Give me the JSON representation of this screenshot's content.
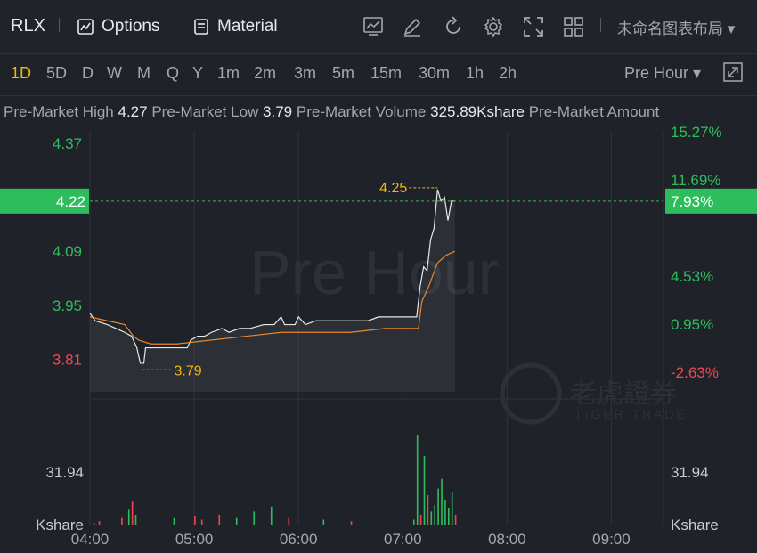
{
  "toolbar": {
    "symbol": "RLX",
    "options_label": "Options",
    "material_label": "Material",
    "layout_label": "未命名图表布局 ▾",
    "icons": [
      "chart-settings-icon",
      "draw-icon",
      "refresh-icon",
      "gear-icon",
      "fullscreen-icon",
      "grid-icon"
    ]
  },
  "periods": [
    "1D",
    "5D",
    "D",
    "W",
    "M",
    "Q",
    "Y",
    "1m",
    "2m",
    "3m",
    "5m",
    "15m",
    "30m",
    "1h",
    "2h"
  ],
  "active_period": "1D",
  "session_dropdown": "Pre Hour ▾",
  "stats": {
    "high_label": "Pre-Market High",
    "high_value": "4.27",
    "low_label": "Pre-Market Low",
    "low_value": "3.79",
    "volume_label": "Pre-Market Volume",
    "volume_value": "325.89Kshare",
    "amount_label": "Pre-Market Amount"
  },
  "colors": {
    "up": "#2ebd5c",
    "down": "#f0464f",
    "accent": "#f0b90b",
    "price_line": "#e8e8e8",
    "avg_line": "#e8882c",
    "current_bg": "#2ebd5c"
  },
  "chart_data": {
    "type": "line",
    "watermark": "Pre Hour",
    "brand_cn": "老虎證券",
    "brand_en": "TIGER TRADE",
    "x_ticks": [
      "04:00",
      "05:00",
      "06:00",
      "07:00",
      "08:00",
      "09:00"
    ],
    "y_ticks_left": [
      "4.37",
      "4.22",
      "4.09",
      "3.95",
      "3.81"
    ],
    "y_ticks_right": [
      "15.27%",
      "11.69%",
      "7.93%",
      "4.53%",
      "0.95%",
      "-2.63%"
    ],
    "current_price": "4.22",
    "current_pct": "7.93%",
    "high_marker": "4.25",
    "low_marker": "3.79",
    "volume_tick": "31.94",
    "volume_unit": "Kshare",
    "price": [
      [
        0,
        3.93
      ],
      [
        3,
        3.91
      ],
      [
        10,
        3.9
      ],
      [
        20,
        3.88
      ],
      [
        24,
        3.87
      ],
      [
        27,
        3.84
      ],
      [
        29,
        3.8
      ],
      [
        31,
        3.8
      ],
      [
        32,
        3.84
      ],
      [
        40,
        3.84
      ],
      [
        50,
        3.84
      ],
      [
        56,
        3.84
      ],
      [
        58,
        3.86
      ],
      [
        62,
        3.87
      ],
      [
        66,
        3.87
      ],
      [
        70,
        3.88
      ],
      [
        76,
        3.89
      ],
      [
        80,
        3.88
      ],
      [
        86,
        3.89
      ],
      [
        92,
        3.89
      ],
      [
        100,
        3.9
      ],
      [
        106,
        3.9
      ],
      [
        110,
        3.92
      ],
      [
        112,
        3.9
      ],
      [
        118,
        3.9
      ],
      [
        120,
        3.92
      ],
      [
        124,
        3.9
      ],
      [
        130,
        3.91
      ],
      [
        140,
        3.91
      ],
      [
        150,
        3.91
      ],
      [
        160,
        3.91
      ],
      [
        166,
        3.92
      ],
      [
        176,
        3.92
      ],
      [
        184,
        3.92
      ],
      [
        188,
        3.92
      ],
      [
        190,
        4.0
      ],
      [
        192,
        4.05
      ],
      [
        194,
        4.04
      ],
      [
        196,
        4.12
      ],
      [
        198,
        4.15
      ],
      [
        200,
        4.25
      ],
      [
        202,
        4.22
      ],
      [
        204,
        4.23
      ],
      [
        206,
        4.17
      ],
      [
        208,
        4.22
      ],
      [
        210,
        4.22
      ]
    ],
    "avg": [
      [
        0,
        3.92
      ],
      [
        10,
        3.91
      ],
      [
        20,
        3.9
      ],
      [
        25,
        3.87
      ],
      [
        28,
        3.86
      ],
      [
        35,
        3.85
      ],
      [
        50,
        3.85
      ],
      [
        70,
        3.86
      ],
      [
        90,
        3.87
      ],
      [
        110,
        3.88
      ],
      [
        130,
        3.88
      ],
      [
        150,
        3.88
      ],
      [
        170,
        3.89
      ],
      [
        185,
        3.89
      ],
      [
        189,
        3.89
      ],
      [
        191,
        3.96
      ],
      [
        195,
        4.0
      ],
      [
        200,
        4.06
      ],
      [
        205,
        4.08
      ],
      [
        210,
        4.09
      ]
    ],
    "volume": [
      [
        2,
        1,
        "up"
      ],
      [
        5,
        2,
        "down"
      ],
      [
        18,
        4,
        "down"
      ],
      [
        22,
        9,
        "up"
      ],
      [
        24,
        14,
        "down"
      ],
      [
        26,
        6,
        "up"
      ],
      [
        48,
        4,
        "up"
      ],
      [
        60,
        5,
        "down"
      ],
      [
        64,
        3,
        "down"
      ],
      [
        74,
        6,
        "down"
      ],
      [
        84,
        4,
        "up"
      ],
      [
        94,
        8,
        "up"
      ],
      [
        104,
        11,
        "up"
      ],
      [
        114,
        4,
        "down"
      ],
      [
        134,
        3,
        "up"
      ],
      [
        150,
        2,
        "down"
      ],
      [
        186,
        3,
        "up"
      ],
      [
        188,
        55,
        "up"
      ],
      [
        190,
        6,
        "down"
      ],
      [
        192,
        42,
        "up"
      ],
      [
        194,
        18,
        "down"
      ],
      [
        196,
        8,
        "up"
      ],
      [
        198,
        12,
        "up"
      ],
      [
        200,
        22,
        "up"
      ],
      [
        202,
        28,
        "up"
      ],
      [
        204,
        15,
        "up"
      ],
      [
        206,
        10,
        "up"
      ],
      [
        208,
        20,
        "up"
      ],
      [
        210,
        6,
        "down"
      ]
    ]
  }
}
